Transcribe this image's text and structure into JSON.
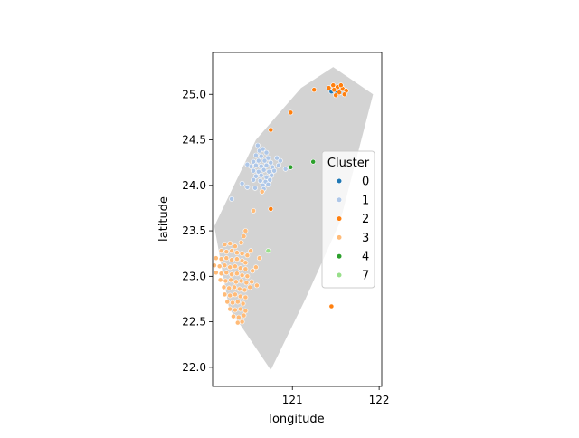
{
  "chart_data": {
    "type": "scatter",
    "xlabel": "longitude",
    "ylabel": "latitude",
    "xlim": [
      120.08,
      122.03
    ],
    "ylim": [
      21.79,
      25.46
    ],
    "xticks": [
      {
        "value": 121,
        "label": "121"
      },
      {
        "value": 122,
        "label": "122"
      }
    ],
    "yticks": [
      {
        "value": 22.0,
        "label": "22.0"
      },
      {
        "value": 22.5,
        "label": "22.5"
      },
      {
        "value": 23.0,
        "label": "23.0"
      },
      {
        "value": 23.5,
        "label": "23.5"
      },
      {
        "value": 24.0,
        "label": "24.0"
      },
      {
        "value": 24.5,
        "label": "24.5"
      },
      {
        "value": 25.0,
        "label": "25.0"
      }
    ],
    "grid": false,
    "legend": {
      "title": "Cluster",
      "placement": "center-right",
      "entries": [
        {
          "label": "0",
          "color": "#1f77b4"
        },
        {
          "label": "1",
          "color": "#aec7e8"
        },
        {
          "label": "2",
          "color": "#ff7f0e"
        },
        {
          "label": "3",
          "color": "#ffbb78"
        },
        {
          "label": "4",
          "color": "#2ca02c"
        },
        {
          "label": "7",
          "color": "#98df8a"
        }
      ]
    },
    "boundary": {
      "fill": "#d3d3d3",
      "points": [
        [
          121.47,
          25.3
        ],
        [
          121.93,
          25.0
        ],
        [
          121.55,
          23.6
        ],
        [
          121.15,
          22.75
        ],
        [
          120.75,
          21.97
        ],
        [
          120.27,
          22.65
        ],
        [
          120.1,
          23.55
        ],
        [
          120.58,
          24.5
        ],
        [
          121.1,
          25.07
        ]
      ]
    },
    "series": [
      {
        "name": "0",
        "color": "#1f77b4",
        "points": [
          [
            121.45,
            25.03
          ],
          [
            121.5,
            25.04
          ],
          [
            121.55,
            25.02
          ]
        ]
      },
      {
        "name": "1",
        "color": "#aec7e8",
        "points": [
          [
            120.62,
            24.38
          ],
          [
            120.66,
            24.4
          ],
          [
            120.7,
            24.36
          ],
          [
            120.58,
            24.33
          ],
          [
            120.64,
            24.32
          ],
          [
            120.72,
            24.3
          ],
          [
            120.55,
            24.26
          ],
          [
            120.61,
            24.27
          ],
          [
            120.68,
            24.27
          ],
          [
            120.75,
            24.25
          ],
          [
            120.52,
            24.21
          ],
          [
            120.58,
            24.22
          ],
          [
            120.64,
            24.21
          ],
          [
            120.7,
            24.22
          ],
          [
            120.77,
            24.2
          ],
          [
            120.84,
            24.22
          ],
          [
            120.92,
            24.18
          ],
          [
            120.55,
            24.16
          ],
          [
            120.61,
            24.15
          ],
          [
            120.67,
            24.17
          ],
          [
            120.73,
            24.15
          ],
          [
            120.79,
            24.16
          ],
          [
            120.58,
            24.1
          ],
          [
            120.64,
            24.11
          ],
          [
            120.7,
            24.09
          ],
          [
            120.76,
            24.11
          ],
          [
            120.63,
            24.05
          ],
          [
            120.69,
            24.04
          ],
          [
            120.74,
            24.06
          ],
          [
            120.66,
            24.0
          ],
          [
            120.72,
            24.01
          ],
          [
            120.67,
            23.96
          ],
          [
            120.55,
            24.06
          ],
          [
            120.42,
            24.02
          ],
          [
            120.48,
            23.98
          ],
          [
            120.57,
            23.97
          ],
          [
            120.48,
            24.23
          ],
          [
            120.3,
            23.85
          ],
          [
            120.86,
            24.27
          ],
          [
            120.82,
            24.3
          ],
          [
            120.6,
            24.44
          ]
        ]
      },
      {
        "name": "2",
        "color": "#ff7f0e",
        "points": [
          [
            121.25,
            25.05
          ],
          [
            121.42,
            25.07
          ],
          [
            121.47,
            25.1
          ],
          [
            121.52,
            25.08
          ],
          [
            121.58,
            25.06
          ],
          [
            121.62,
            25.04
          ],
          [
            121.54,
            25.02
          ],
          [
            121.5,
            24.99
          ],
          [
            121.56,
            25.1
          ],
          [
            121.6,
            25.0
          ],
          [
            121.48,
            25.05
          ],
          [
            120.98,
            24.8
          ],
          [
            120.75,
            24.61
          ],
          [
            120.75,
            23.74
          ],
          [
            121.45,
            22.67
          ]
        ]
      },
      {
        "name": "3",
        "color": "#ffbb78",
        "points": [
          [
            120.22,
            23.35
          ],
          [
            120.28,
            23.36
          ],
          [
            120.34,
            23.33
          ],
          [
            120.41,
            23.37
          ],
          [
            120.46,
            23.5
          ],
          [
            120.44,
            23.44
          ],
          [
            120.18,
            23.28
          ],
          [
            120.24,
            23.27
          ],
          [
            120.3,
            23.28
          ],
          [
            120.36,
            23.26
          ],
          [
            120.42,
            23.25
          ],
          [
            120.48,
            23.23
          ],
          [
            120.12,
            23.2
          ],
          [
            120.18,
            23.19
          ],
          [
            120.24,
            23.2
          ],
          [
            120.3,
            23.18
          ],
          [
            120.36,
            23.19
          ],
          [
            120.42,
            23.17
          ],
          [
            120.1,
            23.12
          ],
          [
            120.16,
            23.11
          ],
          [
            120.22,
            23.12
          ],
          [
            120.28,
            23.1
          ],
          [
            120.34,
            23.11
          ],
          [
            120.4,
            23.09
          ],
          [
            120.46,
            23.08
          ],
          [
            120.12,
            23.04
          ],
          [
            120.18,
            23.03
          ],
          [
            120.24,
            23.04
          ],
          [
            120.3,
            23.02
          ],
          [
            120.36,
            23.03
          ],
          [
            120.42,
            23.01
          ],
          [
            120.48,
            23.0
          ],
          [
            120.54,
            23.06
          ],
          [
            120.58,
            23.1
          ],
          [
            120.17,
            22.96
          ],
          [
            120.23,
            22.95
          ],
          [
            120.29,
            22.96
          ],
          [
            120.35,
            22.94
          ],
          [
            120.41,
            22.95
          ],
          [
            120.47,
            22.93
          ],
          [
            120.53,
            22.94
          ],
          [
            120.59,
            22.9
          ],
          [
            120.21,
            22.88
          ],
          [
            120.27,
            22.87
          ],
          [
            120.33,
            22.88
          ],
          [
            120.39,
            22.86
          ],
          [
            120.45,
            22.85
          ],
          [
            120.51,
            22.88
          ],
          [
            120.22,
            22.8
          ],
          [
            120.28,
            22.79
          ],
          [
            120.34,
            22.8
          ],
          [
            120.4,
            22.78
          ],
          [
            120.46,
            22.77
          ],
          [
            120.25,
            22.72
          ],
          [
            120.31,
            22.71
          ],
          [
            120.37,
            22.72
          ],
          [
            120.43,
            22.7
          ],
          [
            120.28,
            22.64
          ],
          [
            120.34,
            22.63
          ],
          [
            120.4,
            22.64
          ],
          [
            120.46,
            22.62
          ],
          [
            120.32,
            22.56
          ],
          [
            120.38,
            22.55
          ],
          [
            120.44,
            22.57
          ],
          [
            120.37,
            22.49
          ],
          [
            120.42,
            22.5
          ],
          [
            120.65,
            23.93
          ],
          [
            120.55,
            23.72
          ],
          [
            120.62,
            23.2
          ],
          [
            120.52,
            23.28
          ],
          [
            120.46,
            23.15
          ]
        ]
      },
      {
        "name": "4",
        "color": "#2ca02c",
        "points": [
          [
            120.98,
            24.2
          ],
          [
            121.24,
            24.26
          ]
        ]
      },
      {
        "name": "7",
        "color": "#98df8a",
        "points": [
          [
            120.72,
            23.28
          ]
        ]
      }
    ]
  }
}
